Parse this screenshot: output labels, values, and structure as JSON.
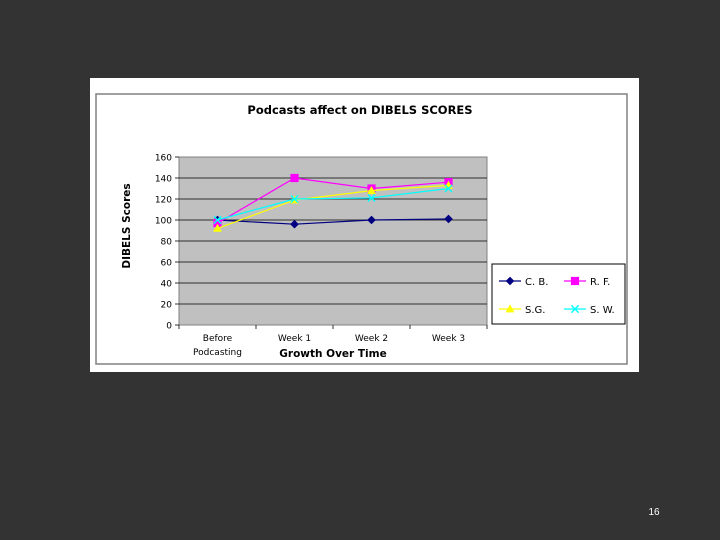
{
  "slide": {
    "page_number": "16",
    "background": "#333333"
  },
  "chart_data": {
    "type": "line",
    "title": "Podcasts affect on DIBELS SCORES",
    "xlabel": "Growth Over Time",
    "ylabel": "DIBELS Scores",
    "categories": [
      "Before Podcasting",
      "Week 1",
      "Week 2",
      "Week 3"
    ],
    "category_lines": [
      [
        "Before",
        "Podcasting"
      ],
      [
        "Week 1"
      ],
      [
        "Week 2"
      ],
      [
        "Week 3"
      ]
    ],
    "ylim": [
      0,
      160
    ],
    "yticks": [
      0,
      20,
      40,
      60,
      80,
      100,
      120,
      140,
      160
    ],
    "grid": true,
    "plot_background": "#c0c0c0",
    "legend_position": "right",
    "series": [
      {
        "name": "C. B.",
        "values": [
          100,
          96,
          100,
          101
        ],
        "color": "#000080",
        "marker": "diamond"
      },
      {
        "name": "R. F.",
        "values": [
          97,
          140,
          130,
          136
        ],
        "color": "#ff00ff",
        "marker": "square"
      },
      {
        "name": "S.G.",
        "values": [
          92,
          119,
          128,
          133
        ],
        "color": "#ffff00",
        "marker": "triangle"
      },
      {
        "name": "S. W.",
        "values": [
          100,
          120,
          121,
          130
        ],
        "color": "#00ffff",
        "marker": "x"
      }
    ]
  }
}
